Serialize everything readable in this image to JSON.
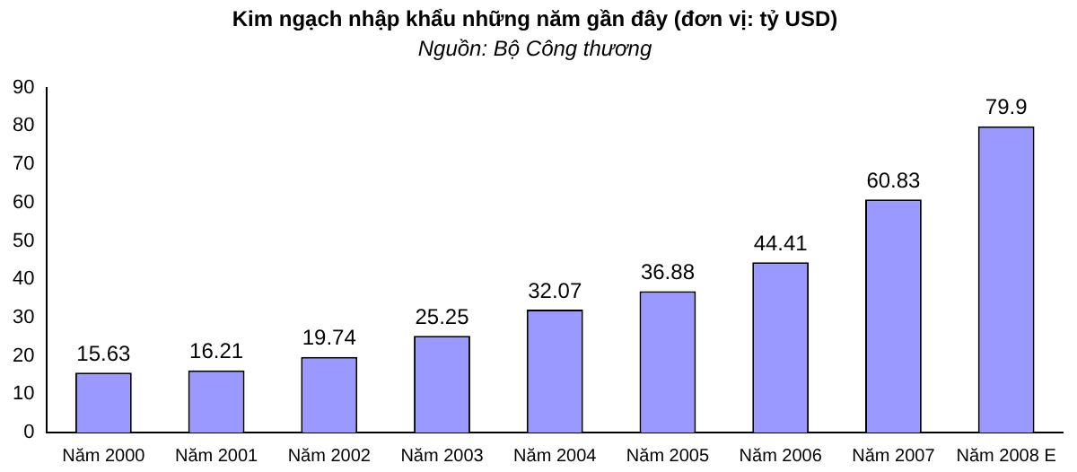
{
  "chart_data": {
    "type": "bar",
    "title": "Kim ngạch nhập khẩu những năm gần đây (đơn vị: tỷ USD)",
    "subtitle": "Nguồn: Bộ Công thương",
    "categories": [
      "Năm 2000",
      "Năm 2001",
      "Năm 2002",
      "Năm 2003",
      "Năm 2004",
      "Năm 2005",
      "Năm 2006",
      "Năm 2007",
      "Năm 2008 E"
    ],
    "values": [
      15.63,
      16.21,
      19.74,
      25.25,
      32.07,
      36.88,
      44.41,
      60.83,
      79.9
    ],
    "color": "#9999ff",
    "ylim": [
      0,
      90
    ],
    "yticks": [
      0,
      10,
      20,
      30,
      40,
      50,
      60,
      70,
      80,
      90
    ],
    "grid": false,
    "legend": false,
    "data_labels": true
  }
}
